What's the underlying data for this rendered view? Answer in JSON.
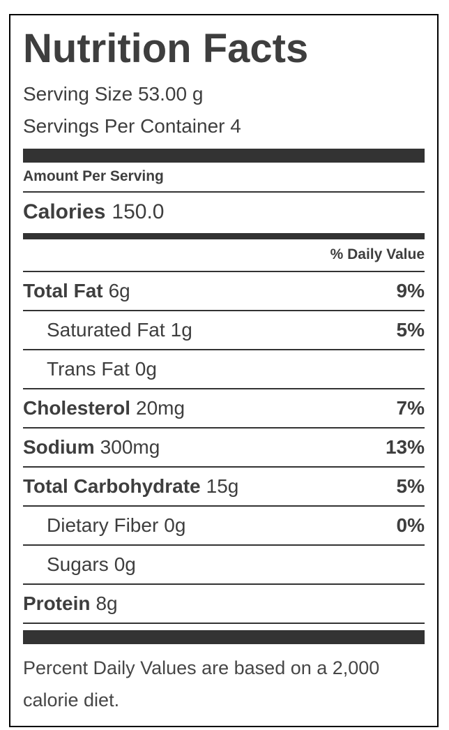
{
  "colors": {
    "text": "#3e3e3e",
    "bar": "#333333",
    "border": "#000000"
  },
  "label": {
    "title": "Nutrition Facts",
    "serving_size": "Serving Size 53.00 g",
    "servings_per_container": "Servings Per Container 4",
    "amount_per_serving": "Amount Per Serving",
    "calories_label": "Calories",
    "calories_value": "150.0",
    "daily_value_header": "% Daily Value",
    "rows": [
      {
        "name": "Total Fat",
        "amount": "6g",
        "dv": "9%"
      },
      {
        "name": "Saturated Fat",
        "amount": "1g",
        "dv": "5%"
      },
      {
        "name": "Trans Fat",
        "amount": "0g",
        "dv": ""
      },
      {
        "name": "Cholesterol",
        "amount": "20mg",
        "dv": "7%"
      },
      {
        "name": "Sodium",
        "amount": "300mg",
        "dv": "13%"
      },
      {
        "name": "Total Carbohydrate",
        "amount": "15g",
        "dv": "5%"
      },
      {
        "name": "Dietary Fiber",
        "amount": "0g",
        "dv": "0%"
      },
      {
        "name": "Sugars",
        "amount": "0g",
        "dv": ""
      },
      {
        "name": "Protein",
        "amount": "8g",
        "dv": ""
      }
    ],
    "footnote": "Percent Daily Values are based on a 2,000 calorie diet."
  }
}
